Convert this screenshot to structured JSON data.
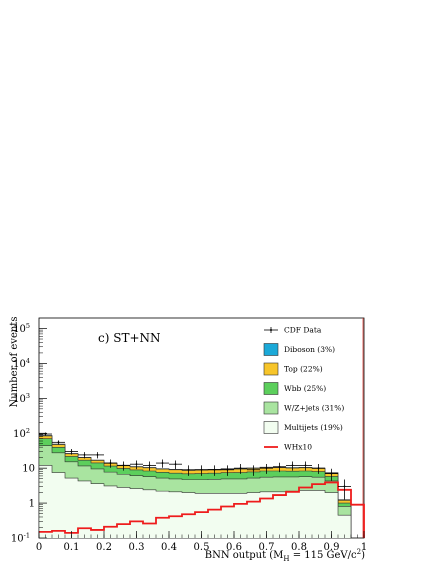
{
  "chart_data": {
    "type": "bar",
    "subtype": "stacked-histogram",
    "annotation": "c) ST+NN",
    "xlabel": "BNN output (M_H = 115 GeV/c^2)",
    "ylabel": "Number of events",
    "xlim": [
      0,
      1
    ],
    "ylim": [
      0.1,
      200000
    ],
    "yscale": "log",
    "legend_position": "top-right",
    "x_ticks": [
      "0",
      "0.1",
      "0.2",
      "0.3",
      "0.4",
      "0.5",
      "0.6",
      "0.7",
      "0.8",
      "0.9",
      "1"
    ],
    "y_ticks": [
      {
        "base": "10",
        "exp": "-1"
      },
      {
        "base": "1",
        "exp": ""
      },
      {
        "base": "10",
        "exp": ""
      },
      {
        "base": "10",
        "exp": "2"
      },
      {
        "base": "10",
        "exp": "3"
      },
      {
        "base": "10",
        "exp": "4"
      },
      {
        "base": "10",
        "exp": "5"
      }
    ],
    "bin_edges": [
      0,
      0.04,
      0.08,
      0.12,
      0.16,
      0.2,
      0.24,
      0.28,
      0.32,
      0.36,
      0.4,
      0.44,
      0.48,
      0.52,
      0.56,
      0.6,
      0.64,
      0.68,
      0.72,
      0.76,
      0.8,
      0.84,
      0.88,
      0.92,
      0.96,
      1.0
    ],
    "stack": [
      {
        "name": "Multijets (19%)",
        "color": "#f2fdf0",
        "values": [
          12,
          7.5,
          5.2,
          4.3,
          3.6,
          3.1,
          2.8,
          2.6,
          2.4,
          2.2,
          2.1,
          2.0,
          1.9,
          1.9,
          1.9,
          1.9,
          2.0,
          2.1,
          2.1,
          2.2,
          2.3,
          2.3,
          2.0,
          0.45,
          0.1
        ]
      },
      {
        "name": "W/Z+jets (31%)",
        "color": "#a9e4a0",
        "values": [
          32,
          20,
          10,
          7.3,
          5.9,
          4.6,
          3.9,
          3.5,
          3.3,
          3.0,
          2.8,
          2.7,
          2.8,
          2.9,
          3.0,
          3.0,
          3.2,
          3.4,
          3.5,
          3.4,
          3.4,
          3.2,
          2.3,
          0.35,
          0
        ]
      },
      {
        "name": "Wbb (25%)",
        "color": "#5ccf5c",
        "values": [
          26,
          12,
          6.5,
          5.3,
          4.6,
          3.8,
          3.1,
          2.8,
          2.6,
          2.4,
          2.3,
          2.2,
          2.3,
          2.4,
          2.5,
          2.6,
          2.6,
          2.8,
          2.7,
          2.6,
          2.6,
          2.5,
          1.5,
          0.2,
          0
        ]
      },
      {
        "name": "Top (22%)",
        "color": "#f7c52a",
        "values": [
          14,
          8.0,
          4.0,
          3.0,
          2.6,
          2.3,
          2.1,
          1.9,
          1.9,
          1.8,
          1.8,
          1.7,
          1.8,
          1.8,
          1.9,
          1.9,
          2.0,
          2.0,
          2.0,
          1.9,
          1.9,
          1.8,
          1.4,
          0.2,
          0
        ]
      },
      {
        "name": "Diboson (3%)",
        "color": "#1ba9d8",
        "values": [
          2.5,
          1.5,
          0.7,
          0.5,
          0.4,
          0.35,
          0.3,
          0.3,
          0.3,
          0.3,
          0.3,
          0.3,
          0.3,
          0.3,
          0.35,
          0.35,
          0.35,
          0.35,
          0.35,
          0.35,
          0.35,
          0.3,
          0.2,
          0.05,
          0
        ]
      }
    ],
    "signal": {
      "name": "WHx10",
      "color": "#ee1c1c",
      "values": [
        0.15,
        0.16,
        0.14,
        0.19,
        0.17,
        0.21,
        0.25,
        0.3,
        0.26,
        0.38,
        0.42,
        0.48,
        0.55,
        0.65,
        0.8,
        0.95,
        1.1,
        1.35,
        1.7,
        2.1,
        2.8,
        3.5,
        3.9,
        2.4,
        0.9
      ]
    },
    "data": {
      "name": "CDF Data",
      "values": [
        95,
        55,
        30,
        24,
        24,
        14,
        12,
        13,
        12,
        14,
        13,
        9,
        9,
        9,
        9,
        10,
        9,
        10,
        11,
        12,
        12,
        10,
        7,
        3.0,
        0
      ]
    }
  }
}
